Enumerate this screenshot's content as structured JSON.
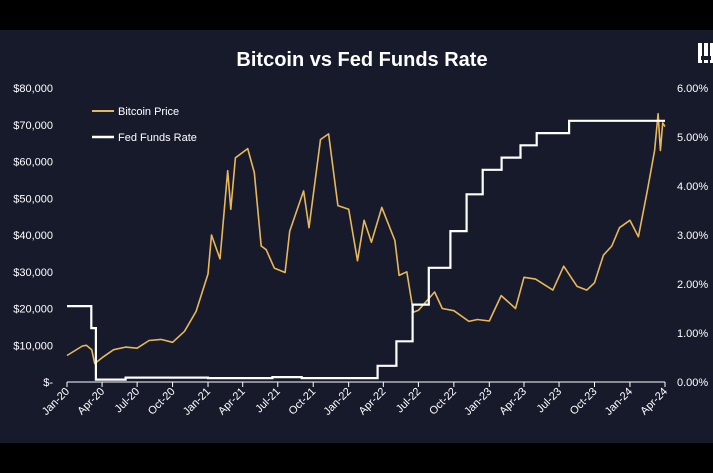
{
  "chart_data": {
    "type": "line",
    "title": "Bitcoin vs Fed Funds Rate",
    "x_tick_labels": [
      "Jan-20",
      "Apr-20",
      "Jul-20",
      "Oct-20",
      "Jan-21",
      "Apr-21",
      "Jul-21",
      "Oct-21",
      "Jan-22",
      "Apr-22",
      "Jul-22",
      "Oct-22",
      "Jan-23",
      "Apr-23",
      "Jul-23",
      "Oct-23",
      "Jan-24",
      "Apr-24"
    ],
    "x_range": [
      "2020-01",
      "2024-04"
    ],
    "y_left": {
      "ticks": [
        0,
        10000,
        20000,
        30000,
        40000,
        50000,
        60000,
        70000,
        80000
      ],
      "tick_labels": [
        "$-",
        "$10,000",
        "$20,000",
        "$30,000",
        "$40,000",
        "$50,000",
        "$60,000",
        "$70,000",
        "$80,000"
      ],
      "range": [
        0,
        80000
      ]
    },
    "y_right": {
      "ticks": [
        0,
        1,
        2,
        3,
        4,
        5,
        6
      ],
      "tick_labels": [
        "0.00%",
        "1.00%",
        "2.00%",
        "3.00%",
        "4.00%",
        "5.00%",
        "6.00%"
      ],
      "range": [
        0,
        6
      ]
    },
    "legend": {
      "position": "top-left"
    },
    "grid": false,
    "series": [
      {
        "name": "Bitcoin Price",
        "axis": "left",
        "color": "#e8b75a",
        "points": [
          [
            "2020-01-01",
            7200
          ],
          [
            "2020-02-10",
            9800
          ],
          [
            "2020-02-20",
            10000
          ],
          [
            "2020-03-05",
            8800
          ],
          [
            "2020-03-13",
            5000
          ],
          [
            "2020-04-01",
            6600
          ],
          [
            "2020-05-01",
            8800
          ],
          [
            "2020-06-01",
            9500
          ],
          [
            "2020-07-01",
            9200
          ],
          [
            "2020-08-01",
            11300
          ],
          [
            "2020-09-01",
            11600
          ],
          [
            "2020-10-01",
            10800
          ],
          [
            "2020-11-01",
            13800
          ],
          [
            "2020-12-01",
            19200
          ],
          [
            "2021-01-01",
            29400
          ],
          [
            "2021-01-10",
            40000
          ],
          [
            "2021-02-01",
            33500
          ],
          [
            "2021-02-21",
            57500
          ],
          [
            "2021-03-01",
            47000
          ],
          [
            "2021-03-13",
            61000
          ],
          [
            "2021-04-14",
            63500
          ],
          [
            "2021-05-01",
            57000
          ],
          [
            "2021-05-19",
            37000
          ],
          [
            "2021-06-01",
            36000
          ],
          [
            "2021-06-22",
            31000
          ],
          [
            "2021-07-20",
            29800
          ],
          [
            "2021-08-01",
            41000
          ],
          [
            "2021-09-06",
            52000
          ],
          [
            "2021-09-20",
            42000
          ],
          [
            "2021-10-20",
            66000
          ],
          [
            "2021-11-10",
            67500
          ],
          [
            "2021-12-04",
            48000
          ],
          [
            "2022-01-01",
            47000
          ],
          [
            "2022-01-24",
            33000
          ],
          [
            "2022-02-10",
            44000
          ],
          [
            "2022-03-01",
            38000
          ],
          [
            "2022-03-28",
            47500
          ],
          [
            "2022-05-01",
            38500
          ],
          [
            "2022-05-12",
            29000
          ],
          [
            "2022-06-01",
            30000
          ],
          [
            "2022-06-18",
            19000
          ],
          [
            "2022-07-01",
            19500
          ],
          [
            "2022-08-12",
            24500
          ],
          [
            "2022-09-01",
            20000
          ],
          [
            "2022-10-01",
            19400
          ],
          [
            "2022-11-09",
            16500
          ],
          [
            "2022-12-01",
            17000
          ],
          [
            "2023-01-01",
            16600
          ],
          [
            "2023-02-01",
            23500
          ],
          [
            "2023-03-10",
            20000
          ],
          [
            "2023-04-01",
            28500
          ],
          [
            "2023-05-01",
            28000
          ],
          [
            "2023-06-15",
            25000
          ],
          [
            "2023-07-13",
            31500
          ],
          [
            "2023-08-17",
            26000
          ],
          [
            "2023-09-11",
            25000
          ],
          [
            "2023-10-01",
            27000
          ],
          [
            "2023-10-24",
            34500
          ],
          [
            "2023-11-15",
            37000
          ],
          [
            "2023-12-05",
            42000
          ],
          [
            "2024-01-01",
            44000
          ],
          [
            "2024-01-23",
            39500
          ],
          [
            "2024-02-15",
            52000
          ],
          [
            "2024-03-05",
            63000
          ],
          [
            "2024-03-14",
            73000
          ],
          [
            "2024-03-20",
            63000
          ],
          [
            "2024-03-26",
            70500
          ],
          [
            "2024-04-01",
            69500
          ]
        ]
      },
      {
        "name": "Fed Funds Rate",
        "axis": "right",
        "color": "#ffffff",
        "step_points": [
          [
            "2020-01-01",
            1.55
          ],
          [
            "2020-03-04",
            1.1
          ],
          [
            "2020-03-16",
            0.05
          ],
          [
            "2020-06-01",
            0.09
          ],
          [
            "2021-01-01",
            0.08
          ],
          [
            "2021-06-17",
            0.1
          ],
          [
            "2021-09-01",
            0.08
          ],
          [
            "2022-03-17",
            0.33
          ],
          [
            "2022-05-05",
            0.83
          ],
          [
            "2022-06-16",
            1.58
          ],
          [
            "2022-07-28",
            2.33
          ],
          [
            "2022-09-22",
            3.08
          ],
          [
            "2022-11-03",
            3.83
          ],
          [
            "2022-12-15",
            4.33
          ],
          [
            "2023-02-02",
            4.58
          ],
          [
            "2023-03-23",
            4.83
          ],
          [
            "2023-05-04",
            5.08
          ],
          [
            "2023-07-27",
            5.33
          ],
          [
            "2024-04-01",
            5.33
          ]
        ]
      }
    ]
  },
  "logo": {
    "name": "brand-logo-icon"
  }
}
